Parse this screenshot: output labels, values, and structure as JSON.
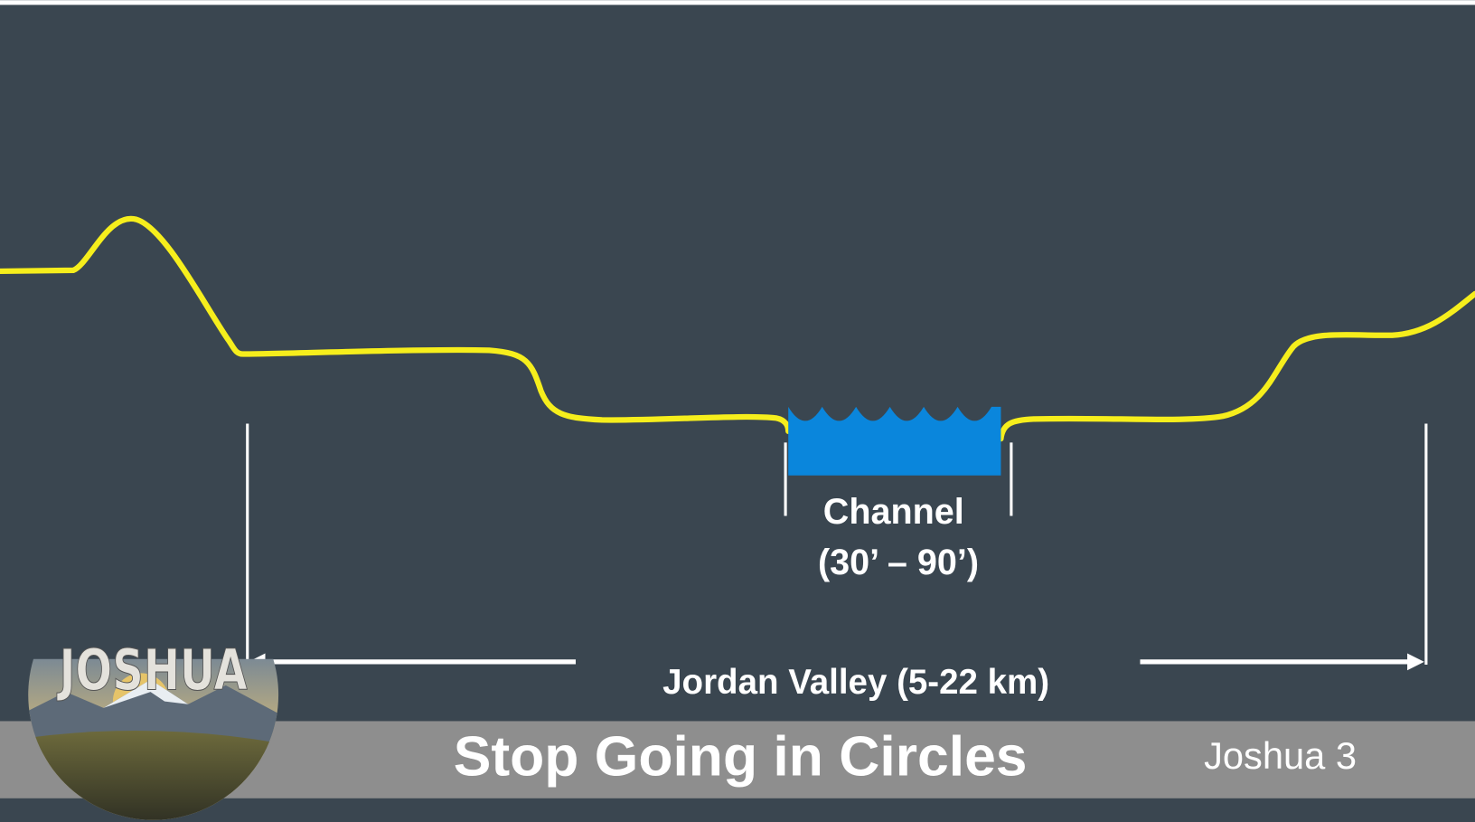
{
  "diagram": {
    "channel_label": "Channel",
    "channel_width": "(30’ – 90’)",
    "valley_label": "Jordan Valley (5-22 km)"
  },
  "footer": {
    "title": "Stop Going in Circles",
    "reference": "Joshua 3",
    "logo_text": "JOSHUA"
  }
}
